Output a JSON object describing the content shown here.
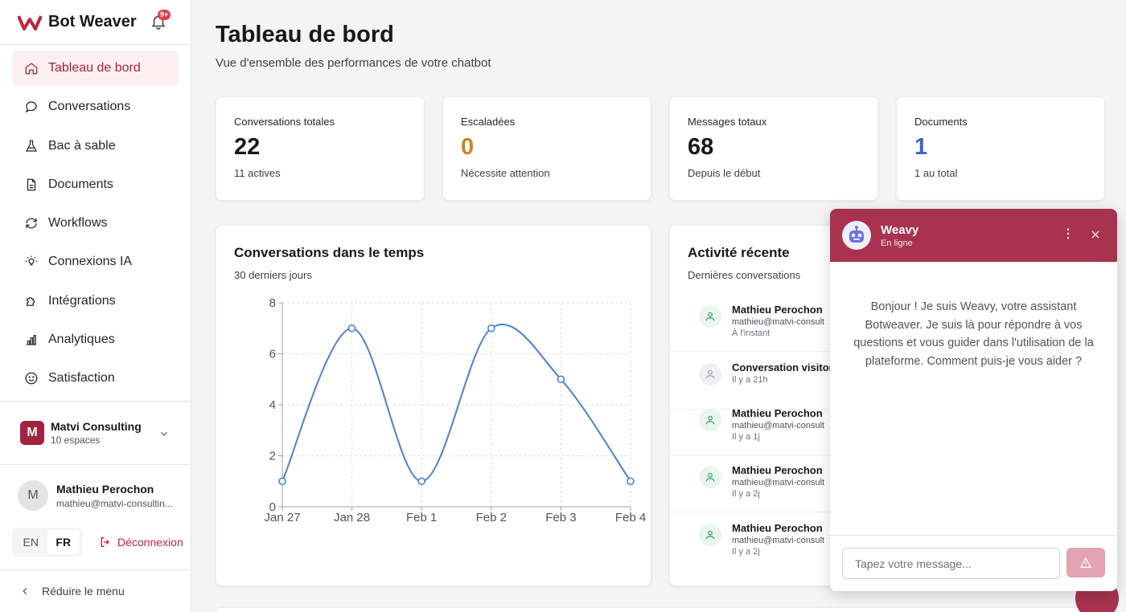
{
  "brand": {
    "name": "Bot Weaver",
    "notifications": "9+"
  },
  "nav": [
    {
      "label": "Tableau de bord",
      "icon": "home-icon",
      "active": true
    },
    {
      "label": "Conversations",
      "icon": "chat-icon"
    },
    {
      "label": "Bac à sable",
      "icon": "flask-icon"
    },
    {
      "label": "Documents",
      "icon": "file-icon"
    },
    {
      "label": "Workflows",
      "icon": "refresh-icon"
    },
    {
      "label": "Connexions IA",
      "icon": "lightbulb-icon"
    },
    {
      "label": "Intégrations",
      "icon": "puzzle-icon"
    },
    {
      "label": "Analytiques",
      "icon": "bar-chart-icon"
    },
    {
      "label": "Satisfaction",
      "icon": "smile-icon"
    }
  ],
  "workspace": {
    "initial": "M",
    "name": "Matvi Consulting",
    "sub": "10 espaces"
  },
  "user": {
    "initial": "M",
    "name": "Mathieu Perochon",
    "email": "mathieu@matvi-consultin..."
  },
  "lang": {
    "en": "EN",
    "fr": "FR"
  },
  "logout": "Déconnexion",
  "collapse": "Réduire le menu",
  "page": {
    "title": "Tableau de bord",
    "subtitle": "Vue d'ensemble des performances de votre chatbot"
  },
  "stats": [
    {
      "label": "Conversations totales",
      "value": "22",
      "hint": "11 actives",
      "color": "#18181b"
    },
    {
      "label": "Escaladées",
      "value": "0",
      "hint": "Nécessite attention",
      "color": "#c48a1c"
    },
    {
      "label": "Messages totaux",
      "value": "68",
      "hint": "Depuis le début",
      "color": "#18181b"
    },
    {
      "label": "Documents",
      "value": "1",
      "hint": "1 au total",
      "color": "#3d63c9"
    }
  ],
  "chart_card": {
    "title": "Conversations dans le temps",
    "subtitle": "30 derniers jours"
  },
  "chart_data": {
    "type": "line",
    "x": [
      "Jan 27",
      "Jan 28",
      "Feb 1",
      "Feb 2",
      "Feb 3",
      "Feb 4"
    ],
    "values": [
      1,
      7,
      1,
      7,
      5,
      1
    ],
    "ylim": [
      0,
      8
    ],
    "yticks": [
      0,
      2,
      4,
      6,
      8
    ],
    "grid": true,
    "color": "#4a7fd9"
  },
  "activity": {
    "title": "Activité récente",
    "subtitle": "Dernières conversations",
    "items": [
      {
        "name": "Mathieu Perochon",
        "email": "mathieu@matvi-consult",
        "time": "À l'instant",
        "kind": "user"
      },
      {
        "name": "Conversation visitor",
        "email": "",
        "time": "Il y a 21h",
        "kind": "visitor"
      },
      {
        "name": "Mathieu Perochon",
        "email": "mathieu@matvi-consult",
        "time": "Il y a 1j",
        "kind": "user"
      },
      {
        "name": "Mathieu Perochon",
        "email": "mathieu@matvi-consult",
        "time": "Il y a 2j",
        "kind": "user"
      },
      {
        "name": "Mathieu Perochon",
        "email": "mathieu@matvi-consult",
        "time": "Il y a 2j",
        "kind": "user"
      }
    ]
  },
  "chat": {
    "name": "Weavy",
    "status": "En ligne",
    "message": "Bonjour ! Je suis Weavy, votre assistant Botweaver. Je suis là pour répondre à vos questions et vous guider dans l'utilisation de la plateforme. Comment puis-je vous aider ?",
    "placeholder": "Tapez votre message..."
  },
  "colors": {
    "accent": "#a3243f",
    "chat_header": "#a8324f"
  }
}
